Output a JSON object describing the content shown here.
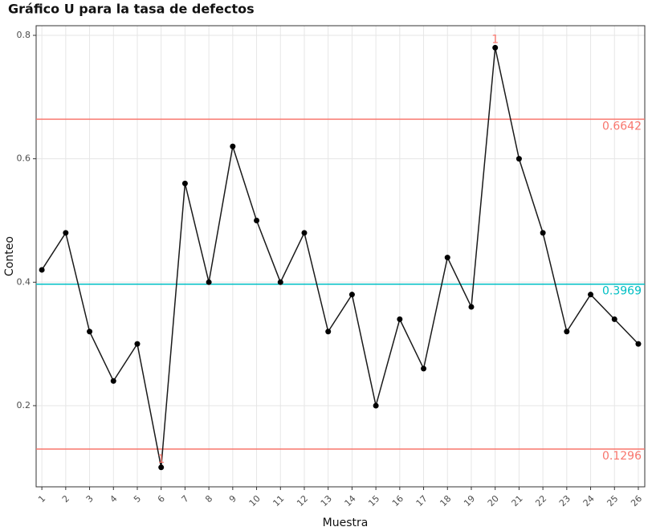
{
  "chart_data": {
    "type": "line",
    "title": "Gráfico U para la tasa de defectos",
    "x_label": "Muestra",
    "y_label": "Conteo",
    "x": [
      1,
      2,
      3,
      4,
      5,
      6,
      7,
      8,
      9,
      10,
      11,
      12,
      13,
      14,
      15,
      16,
      17,
      18,
      19,
      20,
      21,
      22,
      23,
      24,
      25,
      26
    ],
    "values": [
      0.42,
      0.48,
      0.32,
      0.24,
      0.3,
      0.1,
      0.56,
      0.4,
      0.62,
      0.5,
      0.4,
      0.48,
      0.32,
      0.38,
      0.2,
      0.34,
      0.26,
      0.44,
      0.36,
      0.78,
      0.6,
      0.48,
      0.32,
      0.38,
      0.34,
      0.3
    ],
    "color": "#1a1a1a",
    "xlim": [
      0.76,
      26.27
    ],
    "ylim": [
      0.0685,
      0.8156
    ],
    "xticks": [
      1,
      2,
      3,
      4,
      5,
      6,
      7,
      8,
      9,
      10,
      11,
      12,
      13,
      14,
      15,
      16,
      17,
      18,
      19,
      20,
      21,
      22,
      23,
      24,
      25,
      26
    ],
    "yticks": [
      0.2,
      0.4,
      0.6,
      0.8
    ],
    "grid": true,
    "reference_lines": [
      {
        "value": 0.6642,
        "color": "#f8766d"
      },
      {
        "value": 0.3969,
        "color": "#00bfc4"
      },
      {
        "value": 0.1296,
        "color": "#f8766d"
      }
    ],
    "annotations": [
      {
        "x": 20,
        "text": "1",
        "color": "#f8766d"
      },
      {
        "x": 6,
        "text": "1",
        "color": "#f8766d"
      }
    ]
  }
}
